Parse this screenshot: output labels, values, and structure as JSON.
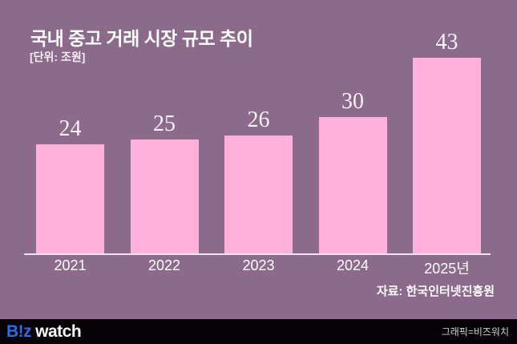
{
  "header": {
    "title": "국내 중고 거래 시장 규모 추이",
    "unit_label": "[단위: 조원]"
  },
  "chart_data": {
    "type": "bar",
    "categories": [
      "2021",
      "2022",
      "2023",
      "2024",
      "2025년"
    ],
    "values": [
      24,
      25,
      26,
      30,
      43
    ],
    "value_labels": [
      "24",
      "25",
      "26",
      "30",
      "43"
    ],
    "title": "국내 중고 거래 시장 규모 추이",
    "xlabel": "",
    "ylabel": "조원",
    "ylim": [
      0,
      45
    ],
    "grid": false,
    "legend": "none",
    "bar_color": "#FFB0DB",
    "background_color": "#8C6A8B",
    "value_label_color": "#F8F2F6",
    "axis_label_color": "#FFFFFF"
  },
  "source": {
    "label": "자료: 한국인터넷진흥원"
  },
  "footer": {
    "logo_biz": "B!z",
    "logo_watch": "watch",
    "logo_blue": "#2E6BE8",
    "credit": "그래픽=비즈워치"
  }
}
